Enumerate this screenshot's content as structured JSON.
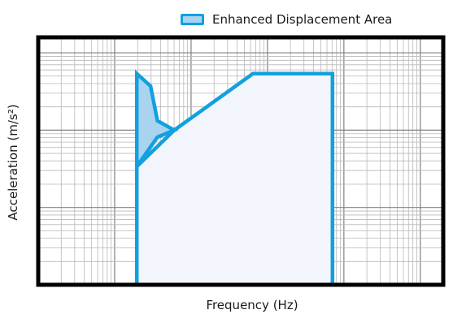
{
  "chart_data": {
    "type": "area",
    "title": "",
    "xlabel": "Frequency (Hz)",
    "ylabel": "Acceleration (m/s²)",
    "xscale": "log",
    "yscale": "log",
    "x_decades": 5.3,
    "y_decades": 3.2,
    "grid": true,
    "tick_labels_shown": false,
    "legend_position": "top-right",
    "series": [
      {
        "name": "Enhanced Displacement Area",
        "fill": "#a9d4f0",
        "stroke": "#12a0e0",
        "points_decades": [
          [
            1.29,
            1.53
          ],
          [
            1.56,
            1.91
          ],
          [
            1.78,
            2.0
          ],
          [
            1.56,
            2.12
          ],
          [
            1.47,
            2.57
          ],
          [
            1.29,
            2.73
          ]
        ]
      },
      {
        "name": "",
        "fill": "#f2f5fc",
        "stroke": "#12a0e0",
        "points_decades": [
          [
            1.29,
            0.0
          ],
          [
            1.29,
            1.53
          ],
          [
            1.78,
            2.0
          ],
          [
            2.81,
            2.73
          ],
          [
            3.85,
            2.73
          ],
          [
            3.85,
            0.0
          ]
        ]
      }
    ]
  },
  "colors": {
    "accent": "#12a0e0",
    "fill_light": "#f2f5fc",
    "fill_band": "#a9d4f0"
  }
}
